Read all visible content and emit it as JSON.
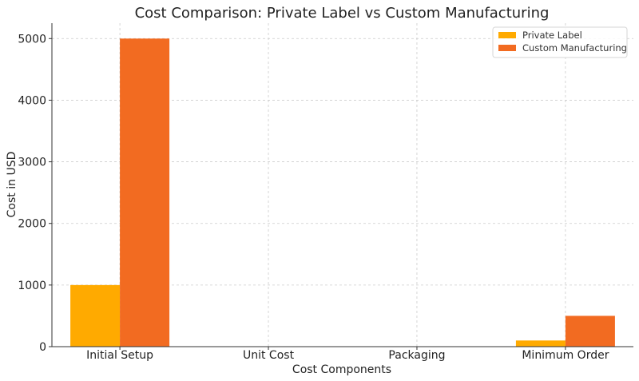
{
  "chart_data": {
    "type": "bar",
    "title": "Cost Comparison: Private Label vs Custom Manufacturing",
    "xlabel": "Cost Components",
    "ylabel": "Cost in USD",
    "categories": [
      "Initial Setup",
      "Unit Cost",
      "Packaging",
      "Minimum Order"
    ],
    "series": [
      {
        "name": "Private Label",
        "values": [
          1000,
          5,
          2,
          100
        ],
        "color": "#FFAA00"
      },
      {
        "name": "Custom Manufacturing",
        "values": [
          5000,
          3,
          1,
          500
        ],
        "color": "#F26B21"
      }
    ],
    "ylim": [
      0,
      5250
    ],
    "yticks": [
      0,
      1000,
      2000,
      3000,
      4000,
      5000
    ],
    "grid": true,
    "legend_position": "top-right"
  }
}
